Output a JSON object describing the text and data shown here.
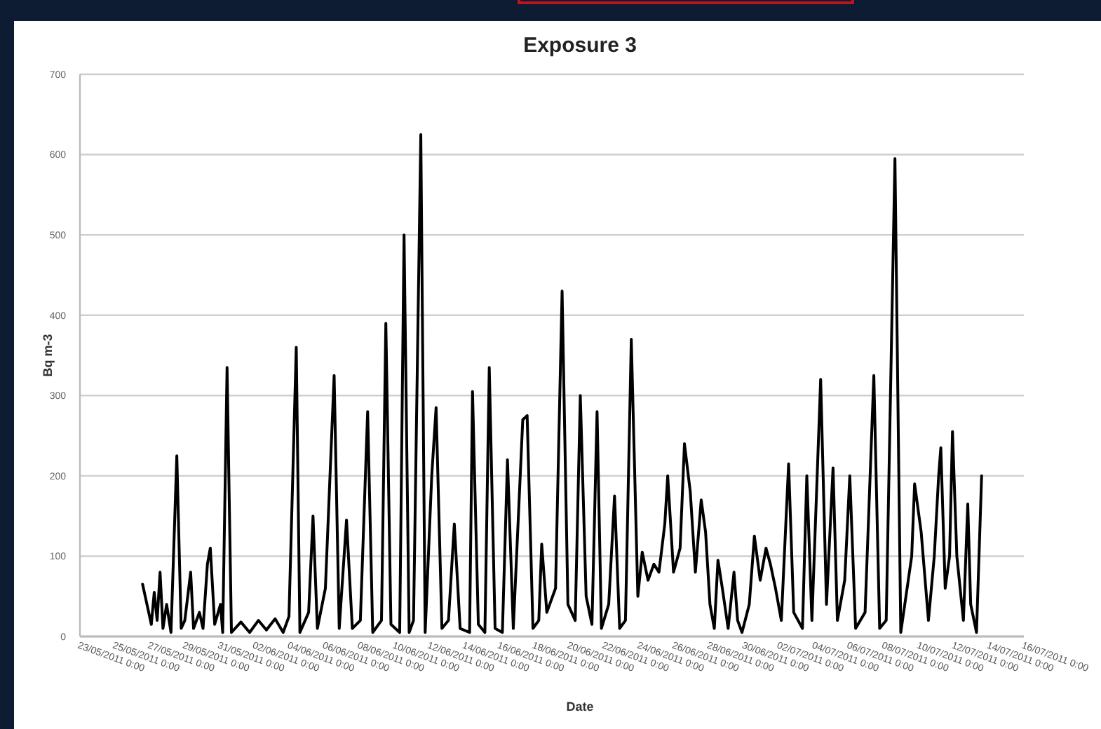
{
  "chart_data": {
    "type": "line",
    "title": "Exposure 3",
    "xlabel": "Date",
    "ylabel": "Bq m-3",
    "xlim": [
      "2011-05-23",
      "2011-07-16"
    ],
    "xticks": [
      {
        "value": "2011-05-23",
        "label": "23/05/2011 0:00"
      },
      {
        "value": "2011-05-25",
        "label": "25/05/2011 0:00"
      },
      {
        "value": "2011-05-27",
        "label": "27/05/2011 0:00"
      },
      {
        "value": "2011-05-29",
        "label": "29/05/2011 0:00"
      },
      {
        "value": "2011-05-31",
        "label": "31/05/2011 0:00"
      },
      {
        "value": "2011-06-02",
        "label": "02/06/2011 0:00"
      },
      {
        "value": "2011-06-04",
        "label": "04/06/2011 0:00"
      },
      {
        "value": "2011-06-06",
        "label": "06/06/2011 0:00"
      },
      {
        "value": "2011-06-08",
        "label": "08/06/2011 0:00"
      },
      {
        "value": "2011-06-10",
        "label": "10/06/2011 0:00"
      },
      {
        "value": "2011-06-12",
        "label": "12/06/2011 0:00"
      },
      {
        "value": "2011-06-14",
        "label": "14/06/2011 0:00"
      },
      {
        "value": "2011-06-16",
        "label": "16/06/2011 0:00"
      },
      {
        "value": "2011-06-18",
        "label": "18/06/2011 0:00"
      },
      {
        "value": "2011-06-20",
        "label": "20/06/2011 0:00"
      },
      {
        "value": "2011-06-22",
        "label": "22/06/2011 0:00"
      },
      {
        "value": "2011-06-24",
        "label": "24/06/2011 0:00"
      },
      {
        "value": "2011-06-26",
        "label": "26/06/2011 0:00"
      },
      {
        "value": "2011-06-28",
        "label": "28/06/2011 0:00"
      },
      {
        "value": "2011-06-30",
        "label": "30/06/2011 0:00"
      },
      {
        "value": "2011-07-02",
        "label": "02/07/2011 0:00"
      },
      {
        "value": "2011-07-04",
        "label": "04/07/2011 0:00"
      },
      {
        "value": "2011-07-06",
        "label": "06/07/2011 0:00"
      },
      {
        "value": "2011-07-08",
        "label": "08/07/2011 0:00"
      },
      {
        "value": "2011-07-10",
        "label": "10/07/2011 0:00"
      },
      {
        "value": "2011-07-12",
        "label": "12/07/2011 0:00"
      },
      {
        "value": "2011-07-14",
        "label": "14/07/2011 0:00"
      },
      {
        "value": "2011-07-16",
        "label": "16/07/2011 0:00"
      }
    ],
    "ylim": [
      0,
      700
    ],
    "yticks": [
      0,
      100,
      200,
      300,
      400,
      500,
      600,
      700
    ],
    "grid": "y",
    "x": [
      "2011-05-26T14:00",
      "2011-05-26T20:00",
      "2011-05-27T02:00",
      "2011-05-27T06:00",
      "2011-05-27T10:00",
      "2011-05-27T14:00",
      "2011-05-27T18:00",
      "2011-05-27T23:00",
      "2011-05-28T05:00",
      "2011-05-28T13:00",
      "2011-05-28T19:00",
      "2011-05-29T00:00",
      "2011-05-29T08:00",
      "2011-05-29T12:00",
      "2011-05-29T20:00",
      "2011-05-30T01:00",
      "2011-05-30T07:00",
      "2011-05-30T11:00",
      "2011-05-30T17:00",
      "2011-05-31T01:00",
      "2011-05-31T04:00",
      "2011-05-31T10:00",
      "2011-05-31T16:00",
      "2011-06-01T05:00",
      "2011-06-01T17:00",
      "2011-06-02T05:00",
      "2011-06-02T16:00",
      "2011-06-03T04:00",
      "2011-06-03T15:00",
      "2011-06-03T23:00",
      "2011-06-04T09:00",
      "2011-06-04T14:00",
      "2011-06-05T02:00",
      "2011-06-05T08:00",
      "2011-06-05T14:00",
      "2011-06-06T01:00",
      "2011-06-06T13:00",
      "2011-06-06T20:00",
      "2011-06-07T06:00",
      "2011-06-07T14:00",
      "2011-06-08T01:00",
      "2011-06-08T11:00",
      "2011-06-08T18:00",
      "2011-06-09T06:00",
      "2011-06-09T12:00",
      "2011-06-09T19:00",
      "2011-06-10T07:00",
      "2011-06-10T13:00",
      "2011-06-10T20:00",
      "2011-06-11T02:00",
      "2011-06-11T12:00",
      "2011-06-11T18:00",
      "2011-06-12T03:00",
      "2011-06-12T09:00",
      "2011-06-12T17:00",
      "2011-06-13T02:00",
      "2011-06-13T10:00",
      "2011-06-13T18:00",
      "2011-06-14T07:00",
      "2011-06-14T11:00",
      "2011-06-14T19:00",
      "2011-06-15T04:00",
      "2011-06-15T10:00",
      "2011-06-15T18:00",
      "2011-06-16T04:00",
      "2011-06-16T11:00",
      "2011-06-16T19:00",
      "2011-06-17T08:00",
      "2011-06-17T14:00",
      "2011-06-17T22:00",
      "2011-06-18T06:00",
      "2011-06-18T10:00",
      "2011-06-18T17:00",
      "2011-06-19T05:00",
      "2011-06-19T14:00",
      "2011-06-19T22:00",
      "2011-06-20T08:00",
      "2011-06-20T15:00",
      "2011-06-20T23:00",
      "2011-06-21T07:00",
      "2011-06-21T14:00",
      "2011-06-21T20:00",
      "2011-06-22T06:00",
      "2011-06-22T14:00",
      "2011-06-22T21:00",
      "2011-06-23T05:00",
      "2011-06-23T13:00",
      "2011-06-23T22:00",
      "2011-06-24T04:00",
      "2011-06-24T12:00",
      "2011-06-24T20:00",
      "2011-06-25T03:00",
      "2011-06-25T11:00",
      "2011-06-25T15:00",
      "2011-06-25T23:00",
      "2011-06-26T08:00",
      "2011-06-26T14:00",
      "2011-06-26T22:00",
      "2011-06-27T05:00",
      "2011-06-27T13:00",
      "2011-06-27T19:00",
      "2011-06-28T01:00",
      "2011-06-28T07:00",
      "2011-06-28T12:00",
      "2011-06-28T18:00",
      "2011-06-29T02:00",
      "2011-06-29T10:00",
      "2011-06-29T15:00",
      "2011-06-29T21:00",
      "2011-06-30T07:00",
      "2011-06-30T14:00",
      "2011-06-30T22:00",
      "2011-07-01T06:00",
      "2011-07-01T12:00",
      "2011-07-01T19:00",
      "2011-07-02T03:00",
      "2011-07-02T13:00",
      "2011-07-02T20:00",
      "2011-07-03T08:00",
      "2011-07-03T14:00",
      "2011-07-03T21:00",
      "2011-07-04T09:00",
      "2011-07-04T17:00",
      "2011-07-05T02:00",
      "2011-07-05T08:00",
      "2011-07-05T18:00",
      "2011-07-06T01:00",
      "2011-07-06T09:00",
      "2011-07-06T22:00",
      "2011-07-07T10:00",
      "2011-07-07T18:00",
      "2011-07-08T03:00",
      "2011-07-08T15:00",
      "2011-07-08T23:00",
      "2011-07-09T14:00",
      "2011-07-09T18:00",
      "2011-07-10T03:00",
      "2011-07-10T13:00",
      "2011-07-10T21:00",
      "2011-07-11T03:00",
      "2011-07-11T06:00",
      "2011-07-11T12:00",
      "2011-07-11T18:00",
      "2011-07-11T22:00",
      "2011-07-12T04:00",
      "2011-07-12T13:00",
      "2011-07-12T19:00",
      "2011-07-12T23:00",
      "2011-07-13T07:00",
      "2011-07-13T14:00"
    ],
    "series": [
      {
        "color": "#000000",
        "line_style": "solid",
        "marker": "none",
        "values": [
          65,
          40,
          15,
          55,
          20,
          80,
          10,
          40,
          5,
          225,
          10,
          20,
          80,
          10,
          30,
          10,
          90,
          110,
          15,
          40,
          5,
          335,
          5,
          18,
          5,
          20,
          8,
          22,
          5,
          25,
          360,
          5,
          30,
          150,
          10,
          60,
          325,
          10,
          145,
          10,
          20,
          280,
          5,
          20,
          390,
          15,
          5,
          500,
          5,
          20,
          625,
          5,
          200,
          285,
          10,
          20,
          140,
          10,
          5,
          305,
          15,
          5,
          335,
          10,
          5,
          220,
          10,
          270,
          275,
          10,
          20,
          115,
          30,
          60,
          430,
          40,
          20,
          300,
          50,
          15,
          280,
          10,
          40,
          175,
          10,
          20,
          370,
          50,
          105,
          70,
          90,
          80,
          140,
          200,
          80,
          110,
          240,
          180,
          80,
          170,
          130,
          40,
          10,
          95,
          60,
          10,
          80,
          20,
          5,
          40,
          125,
          70,
          110,
          90,
          60,
          20,
          215,
          30,
          10,
          200,
          20,
          320,
          40,
          210,
          20,
          70,
          200,
          10,
          30,
          325,
          10,
          20,
          595,
          5,
          100,
          190,
          130,
          20,
          100,
          200,
          235,
          60,
          100,
          255,
          100,
          20,
          165,
          40,
          5,
          200
        ]
      }
    ]
  }
}
